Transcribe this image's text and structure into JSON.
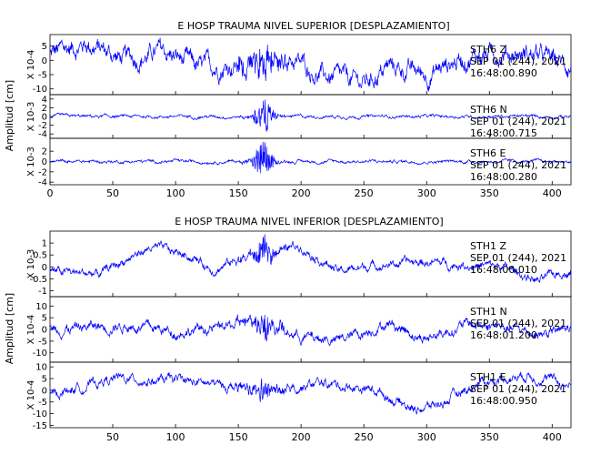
{
  "chart_data": [
    {
      "type": "line",
      "title": "E HOSP TRAUMA NIVEL SUPERIOR [DESPLAZAMIENTO]",
      "ylabel": "Amplitud [cm]",
      "xlim": [
        0,
        415
      ],
      "xticks": [
        0,
        50,
        100,
        150,
        200,
        250,
        300,
        350,
        400
      ],
      "series": [
        {
          "name": "STH6 Z",
          "exponent": "X 10-4",
          "ylim": [
            -12,
            9
          ],
          "yticks": [
            5,
            0,
            -5,
            -10
          ],
          "date": "SEP 01 (244), 2021",
          "time": "16:48:00.890",
          "amp": 3.2,
          "burst": 6,
          "drift": [
            [
              0,
              2
            ],
            [
              30,
              6
            ],
            [
              60,
              0
            ],
            [
              90,
              3
            ],
            [
              120,
              -3
            ],
            [
              150,
              -1
            ],
            [
              170,
              -2
            ],
            [
              190,
              1
            ],
            [
              220,
              -6
            ],
            [
              250,
              -8
            ],
            [
              270,
              -2
            ],
            [
              300,
              -5
            ],
            [
              330,
              1
            ],
            [
              360,
              3
            ],
            [
              385,
              2
            ],
            [
              415,
              -2
            ]
          ]
        },
        {
          "name": "STH6 N",
          "exponent": "X 10-3",
          "ylim": [
            -5,
            5
          ],
          "yticks": [
            4,
            2,
            0,
            -2,
            -4
          ],
          "date": "SEP 01 (244), 2021",
          "time": "16:48:00.715",
          "amp": 0.35,
          "burst": 4.0,
          "drift": [
            [
              0,
              0
            ],
            [
              415,
              0
            ]
          ]
        },
        {
          "name": "STH6 E",
          "exponent": "X 10-3",
          "ylim": [
            -4.5,
            4.5
          ],
          "yticks": [
            2,
            0,
            -2,
            -4
          ],
          "date": "SEP 01 (244), 2021",
          "time": "16:48:00.280",
          "amp": 0.3,
          "burst": 4.0,
          "drift": [
            [
              0,
              0
            ],
            [
              415,
              0
            ]
          ]
        }
      ]
    },
    {
      "type": "line",
      "title": "E HOSP TRAUMA NIVEL INFERIOR [DESPLAZAMIENTO]",
      "ylabel": "Amplitud [cm]",
      "xlim": [
        0,
        415
      ],
      "xticks": [
        50,
        100,
        150,
        200,
        250,
        300,
        350,
        400
      ],
      "series": [
        {
          "name": "STH1 Z",
          "exponent": "X 10-3",
          "ylim": [
            -1.25,
            1.5
          ],
          "yticks": [
            1,
            0.5,
            0,
            -0.5,
            -1
          ],
          "date": "SEP 01 (244), 2021",
          "time": "16:48:00.010",
          "amp": 0.18,
          "burst": 0.5,
          "drift": [
            [
              0,
              -0.2
            ],
            [
              40,
              -0.3
            ],
            [
              60,
              0.3
            ],
            [
              80,
              0.8
            ],
            [
              110,
              0.5
            ],
            [
              130,
              -0.1
            ],
            [
              160,
              0.5
            ],
            [
              200,
              0.9
            ],
            [
              230,
              -0.2
            ],
            [
              260,
              0.1
            ],
            [
              300,
              0.2
            ],
            [
              330,
              0.1
            ],
            [
              360,
              0
            ],
            [
              390,
              -0.6
            ],
            [
              415,
              -0.1
            ]
          ]
        },
        {
          "name": "STH1 N",
          "exponent": "X 10-4",
          "ylim": [
            -14,
            14
          ],
          "yticks": [
            10,
            5,
            0,
            -5,
            -10
          ],
          "date": "SEP 01 (244), 2021",
          "time": "16:48:01.200",
          "amp": 2.2,
          "burst": 6,
          "drift": [
            [
              0,
              0
            ],
            [
              60,
              2
            ],
            [
              100,
              -1
            ],
            [
              140,
              1
            ],
            [
              170,
              4
            ],
            [
              200,
              -3
            ],
            [
              230,
              -5
            ],
            [
              270,
              3
            ],
            [
              300,
              -4
            ],
            [
              330,
              2
            ],
            [
              360,
              1
            ],
            [
              390,
              -2
            ],
            [
              415,
              0
            ]
          ]
        },
        {
          "name": "STH1 E",
          "exponent": "X 10-4",
          "ylim": [
            -16,
            12
          ],
          "yticks": [
            10,
            5,
            0,
            -5,
            -10,
            -15
          ],
          "date": "SEP 01 (244), 2021",
          "time": "16:48:00.950",
          "amp": 2.0,
          "burst": 4,
          "drift": [
            [
              0,
              -2
            ],
            [
              50,
              5
            ],
            [
              100,
              4
            ],
            [
              140,
              2
            ],
            [
              170,
              0
            ],
            [
              220,
              3
            ],
            [
              260,
              0
            ],
            [
              290,
              -8
            ],
            [
              310,
              -6
            ],
            [
              340,
              3
            ],
            [
              380,
              7
            ],
            [
              415,
              2
            ]
          ]
        }
      ]
    }
  ],
  "colors": {
    "trace": "#0000ff",
    "axes": "#000000",
    "background": "#ffffff"
  }
}
